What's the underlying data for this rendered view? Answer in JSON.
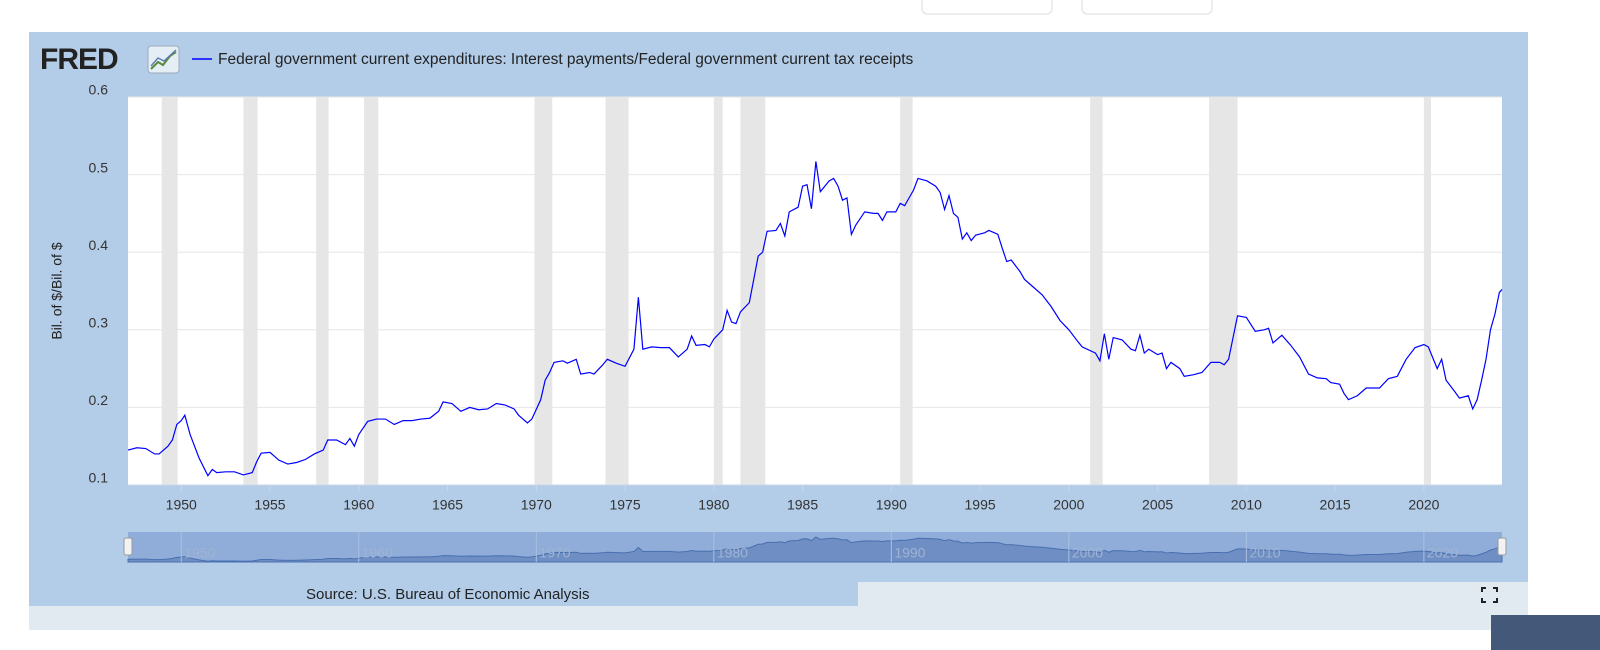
{
  "logo": "FRED",
  "source": "Source: U.S. Bureau of Economic Analysis",
  "chart_data": {
    "type": "line",
    "y_label": "Bil. of $/Bil. of $",
    "xlim": [
      1947,
      2024.4
    ],
    "xticks": [
      1950,
      1955,
      1960,
      1965,
      1970,
      1975,
      1980,
      1985,
      1990,
      1995,
      2000,
      2005,
      2010,
      2015,
      2020
    ],
    "ylim": [
      0.1,
      0.6
    ],
    "yticks": [
      0.1,
      0.2,
      0.3,
      0.4,
      0.5,
      0.6
    ],
    "grid": true,
    "recessions": [
      [
        1948.9,
        1949.8
      ],
      [
        1953.5,
        1954.3
      ],
      [
        1957.6,
        1958.3
      ],
      [
        1960.3,
        1961.1
      ],
      [
        1969.9,
        1970.9
      ],
      [
        1973.9,
        1975.2
      ],
      [
        1980.0,
        1980.5
      ],
      [
        1981.5,
        1982.9
      ],
      [
        1990.5,
        1991.2
      ],
      [
        2001.2,
        2001.9
      ],
      [
        2007.9,
        2009.5
      ],
      [
        2020.0,
        2020.4
      ]
    ],
    "navigator_labels": [
      "1950",
      "1960",
      "1970",
      "1980",
      "1990",
      "2000",
      "2010",
      "2020"
    ],
    "x": [
      1947.0,
      1947.5,
      1948.0,
      1948.5,
      1948.75,
      1949.25,
      1949.5,
      1949.75,
      1950.0,
      1950.2,
      1950.5,
      1951.0,
      1951.5,
      1951.75,
      1952.0,
      1952.5,
      1953.0,
      1953.5,
      1954.0,
      1954.25,
      1954.5,
      1955.0,
      1955.5,
      1956.0,
      1956.5,
      1957.0,
      1957.5,
      1958.0,
      1958.25,
      1958.75,
      1959.25,
      1959.5,
      1959.75,
      1960.0,
      1960.5,
      1961.0,
      1961.5,
      1962.0,
      1962.5,
      1963.0,
      1963.5,
      1964.0,
      1964.5,
      1964.75,
      1965.25,
      1965.75,
      1966.25,
      1966.75,
      1967.25,
      1967.75,
      1968.25,
      1968.75,
      1969.0,
      1969.5,
      1969.75,
      1970.25,
      1970.5,
      1970.75,
      1971.0,
      1971.5,
      1971.75,
      1972.25,
      1972.5,
      1973.0,
      1973.25,
      1973.75,
      1974.0,
      1974.5,
      1975.0,
      1975.5,
      1975.75,
      1976.0,
      1976.5,
      1977.0,
      1977.5,
      1978.0,
      1978.5,
      1978.75,
      1979.0,
      1979.5,
      1979.75,
      1980.0,
      1980.5,
      1980.75,
      1981.0,
      1981.25,
      1981.5,
      1982.0,
      1982.25,
      1982.5,
      1982.75,
      1983.0,
      1983.5,
      1983.75,
      1984.0,
      1984.25,
      1984.75,
      1985.0,
      1985.25,
      1985.5,
      1985.75,
      1986.0,
      1986.5,
      1986.75,
      1987.0,
      1987.25,
      1987.5,
      1987.75,
      1988.0,
      1988.5,
      1989.0,
      1989.25,
      1989.5,
      1989.75,
      1990.25,
      1990.5,
      1990.75,
      1991.0,
      1991.25,
      1991.5,
      1992.0,
      1992.5,
      1992.75,
      1993.0,
      1993.25,
      1993.5,
      1993.75,
      1994.0,
      1994.25,
      1994.5,
      1994.75,
      1995.25,
      1995.5,
      1996.0,
      1996.25,
      1996.5,
      1996.75,
      1997.25,
      1997.5,
      1998.0,
      1998.5,
      1999.0,
      1999.5,
      2000.0,
      2000.5,
      2000.75,
      2001.5,
      2001.75,
      2002.0,
      2002.25,
      2002.5,
      2003.0,
      2003.5,
      2003.75,
      2004.0,
      2004.25,
      2004.5,
      2005.0,
      2005.25,
      2005.5,
      2005.75,
      2006.25,
      2006.5,
      2007.0,
      2007.5,
      2008.0,
      2008.5,
      2008.75,
      2009.0,
      2009.25,
      2009.5,
      2010.0,
      2010.5,
      2011.0,
      2011.25,
      2011.5,
      2012.0,
      2012.5,
      2013.0,
      2013.5,
      2014.0,
      2014.5,
      2014.75,
      2015.25,
      2015.5,
      2015.75,
      2016.25,
      2016.75,
      2017.5,
      2018.0,
      2018.5,
      2019.0,
      2019.5,
      2020.0,
      2020.25,
      2020.75,
      2021.0,
      2021.25,
      2021.75,
      2022.0,
      2022.5,
      2022.75,
      2023.0,
      2023.25,
      2023.5,
      2023.75,
      2024.0,
      2024.25,
      2024.4
    ],
    "series": [
      {
        "name": "Federal government current expenditures: Interest payments/Federal government current tax receipts",
        "color": "#0000ff",
        "values": [
          0.145,
          0.148,
          0.147,
          0.14,
          0.14,
          0.15,
          0.158,
          0.178,
          0.183,
          0.19,
          0.165,
          0.135,
          0.112,
          0.12,
          0.116,
          0.117,
          0.117,
          0.113,
          0.116,
          0.13,
          0.141,
          0.142,
          0.132,
          0.127,
          0.129,
          0.133,
          0.14,
          0.145,
          0.158,
          0.158,
          0.152,
          0.16,
          0.15,
          0.165,
          0.182,
          0.185,
          0.185,
          0.178,
          0.183,
          0.183,
          0.185,
          0.186,
          0.195,
          0.207,
          0.205,
          0.195,
          0.2,
          0.197,
          0.198,
          0.205,
          0.203,
          0.198,
          0.19,
          0.18,
          0.185,
          0.21,
          0.235,
          0.245,
          0.258,
          0.26,
          0.257,
          0.262,
          0.243,
          0.245,
          0.243,
          0.255,
          0.262,
          0.257,
          0.253,
          0.275,
          0.342,
          0.275,
          0.278,
          0.277,
          0.277,
          0.265,
          0.275,
          0.292,
          0.28,
          0.281,
          0.278,
          0.288,
          0.3,
          0.325,
          0.31,
          0.308,
          0.323,
          0.335,
          0.365,
          0.395,
          0.4,
          0.427,
          0.428,
          0.437,
          0.421,
          0.452,
          0.458,
          0.485,
          0.487,
          0.456,
          0.517,
          0.478,
          0.492,
          0.495,
          0.485,
          0.467,
          0.47,
          0.423,
          0.435,
          0.452,
          0.45,
          0.45,
          0.441,
          0.452,
          0.452,
          0.463,
          0.46,
          0.47,
          0.48,
          0.495,
          0.492,
          0.485,
          0.477,
          0.455,
          0.473,
          0.45,
          0.445,
          0.417,
          0.425,
          0.415,
          0.422,
          0.425,
          0.428,
          0.423,
          0.405,
          0.388,
          0.39,
          0.375,
          0.365,
          0.355,
          0.345,
          0.33,
          0.312,
          0.3,
          0.285,
          0.278,
          0.27,
          0.26,
          0.295,
          0.262,
          0.29,
          0.287,
          0.275,
          0.273,
          0.293,
          0.27,
          0.275,
          0.268,
          0.27,
          0.25,
          0.258,
          0.25,
          0.24,
          0.242,
          0.245,
          0.258,
          0.258,
          0.255,
          0.262,
          0.29,
          0.318,
          0.316,
          0.298,
          0.3,
          0.302,
          0.283,
          0.293,
          0.28,
          0.265,
          0.243,
          0.238,
          0.237,
          0.232,
          0.23,
          0.218,
          0.21,
          0.215,
          0.225,
          0.225,
          0.237,
          0.24,
          0.262,
          0.277,
          0.281,
          0.278,
          0.25,
          0.262,
          0.235,
          0.22,
          0.212,
          0.215,
          0.198,
          0.21,
          0.235,
          0.262,
          0.3,
          0.32,
          0.348,
          0.352
        ]
      }
    ]
  }
}
